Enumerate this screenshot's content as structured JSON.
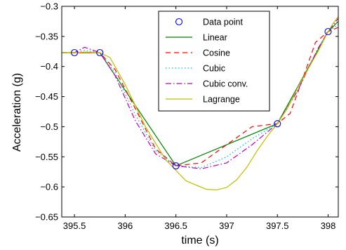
{
  "chart_data": {
    "type": "line",
    "xlabel": "time (s)",
    "ylabel": "Acceleration (g)",
    "xlim": [
      395.375,
      398.1
    ],
    "ylim": [
      -0.65,
      -0.3
    ],
    "xticks": [
      395.5,
      396,
      396.5,
      397,
      397.5,
      398
    ],
    "xtick_labels": [
      "395.5",
      "396",
      "396.5",
      "397",
      "397.5",
      "398"
    ],
    "yticks": [
      -0.65,
      -0.6,
      -0.55,
      -0.5,
      -0.45,
      -0.4,
      -0.35,
      -0.3
    ],
    "ytick_labels": [
      "−0.65",
      "−0.6",
      "−0.55",
      "−0.5",
      "−0.45",
      "−0.4",
      "−0.35",
      "−0.3"
    ],
    "grid": false,
    "legend_position": "top-center",
    "data_points": {
      "name": "Data point",
      "color": "#0000ff",
      "x": [
        395.5,
        395.75,
        396.5,
        397.5,
        398
      ],
      "y": [
        -0.377,
        -0.377,
        -0.565,
        -0.495,
        -0.342
      ]
    },
    "series": [
      {
        "name": "Linear",
        "color": "#008000",
        "dash": "",
        "x": [
          395.375,
          395.5,
          395.75,
          396.5,
          397.5,
          398,
          398.1
        ],
        "y": [
          -0.377,
          -0.377,
          -0.377,
          -0.565,
          -0.495,
          -0.342,
          -0.325
        ]
      },
      {
        "name": "Cosine",
        "color": "#ff0000",
        "dash": "7,5",
        "x": [
          395.375,
          395.5,
          395.625,
          395.75,
          395.9,
          396.1,
          396.3,
          396.5,
          396.75,
          397.0,
          397.25,
          397.5,
          397.625,
          397.75,
          397.875,
          398,
          398.1
        ],
        "y": [
          -0.377,
          -0.377,
          -0.377,
          -0.377,
          -0.405,
          -0.47,
          -0.537,
          -0.565,
          -0.56,
          -0.53,
          -0.5,
          -0.495,
          -0.478,
          -0.42,
          -0.36,
          -0.342,
          -0.335
        ]
      },
      {
        "name": "Cubic",
        "color": "#00bfbf",
        "dash": "1.5,3",
        "x": [
          395.375,
          395.5,
          395.6,
          395.75,
          395.9,
          396.1,
          396.3,
          396.5,
          396.75,
          397.0,
          397.25,
          397.5,
          397.7,
          397.9,
          398,
          398.1
        ],
        "y": [
          -0.377,
          -0.377,
          -0.373,
          -0.377,
          -0.41,
          -0.48,
          -0.54,
          -0.565,
          -0.568,
          -0.55,
          -0.52,
          -0.495,
          -0.44,
          -0.37,
          -0.342,
          -0.33
        ]
      },
      {
        "name": "Cubic conv.",
        "color": "#bf00bf",
        "dash": "8,3,1.5,3",
        "x": [
          395.375,
          395.5,
          395.6,
          395.75,
          395.9,
          396.1,
          396.3,
          396.5,
          396.75,
          397.0,
          397.25,
          397.5,
          397.7,
          397.9,
          398,
          398.1
        ],
        "y": [
          -0.377,
          -0.377,
          -0.368,
          -0.377,
          -0.415,
          -0.49,
          -0.545,
          -0.565,
          -0.57,
          -0.56,
          -0.53,
          -0.495,
          -0.44,
          -0.37,
          -0.342,
          -0.32
        ]
      },
      {
        "name": "Lagrange",
        "color": "#bfbf00",
        "dash": "",
        "x": [
          395.375,
          395.5,
          395.6,
          395.75,
          395.85,
          396.0,
          396.2,
          396.4,
          396.6,
          396.8,
          396.9,
          397.0,
          397.1,
          397.2,
          397.3,
          397.4,
          397.5,
          397.6,
          397.7,
          397.8,
          397.9,
          398,
          398.05,
          398.1
        ],
        "y": [
          -0.377,
          -0.377,
          -0.376,
          -0.377,
          -0.385,
          -0.43,
          -0.5,
          -0.555,
          -0.59,
          -0.604,
          -0.605,
          -0.601,
          -0.588,
          -0.567,
          -0.54,
          -0.516,
          -0.495,
          -0.469,
          -0.435,
          -0.405,
          -0.375,
          -0.342,
          -0.328,
          -0.317
        ]
      }
    ]
  }
}
